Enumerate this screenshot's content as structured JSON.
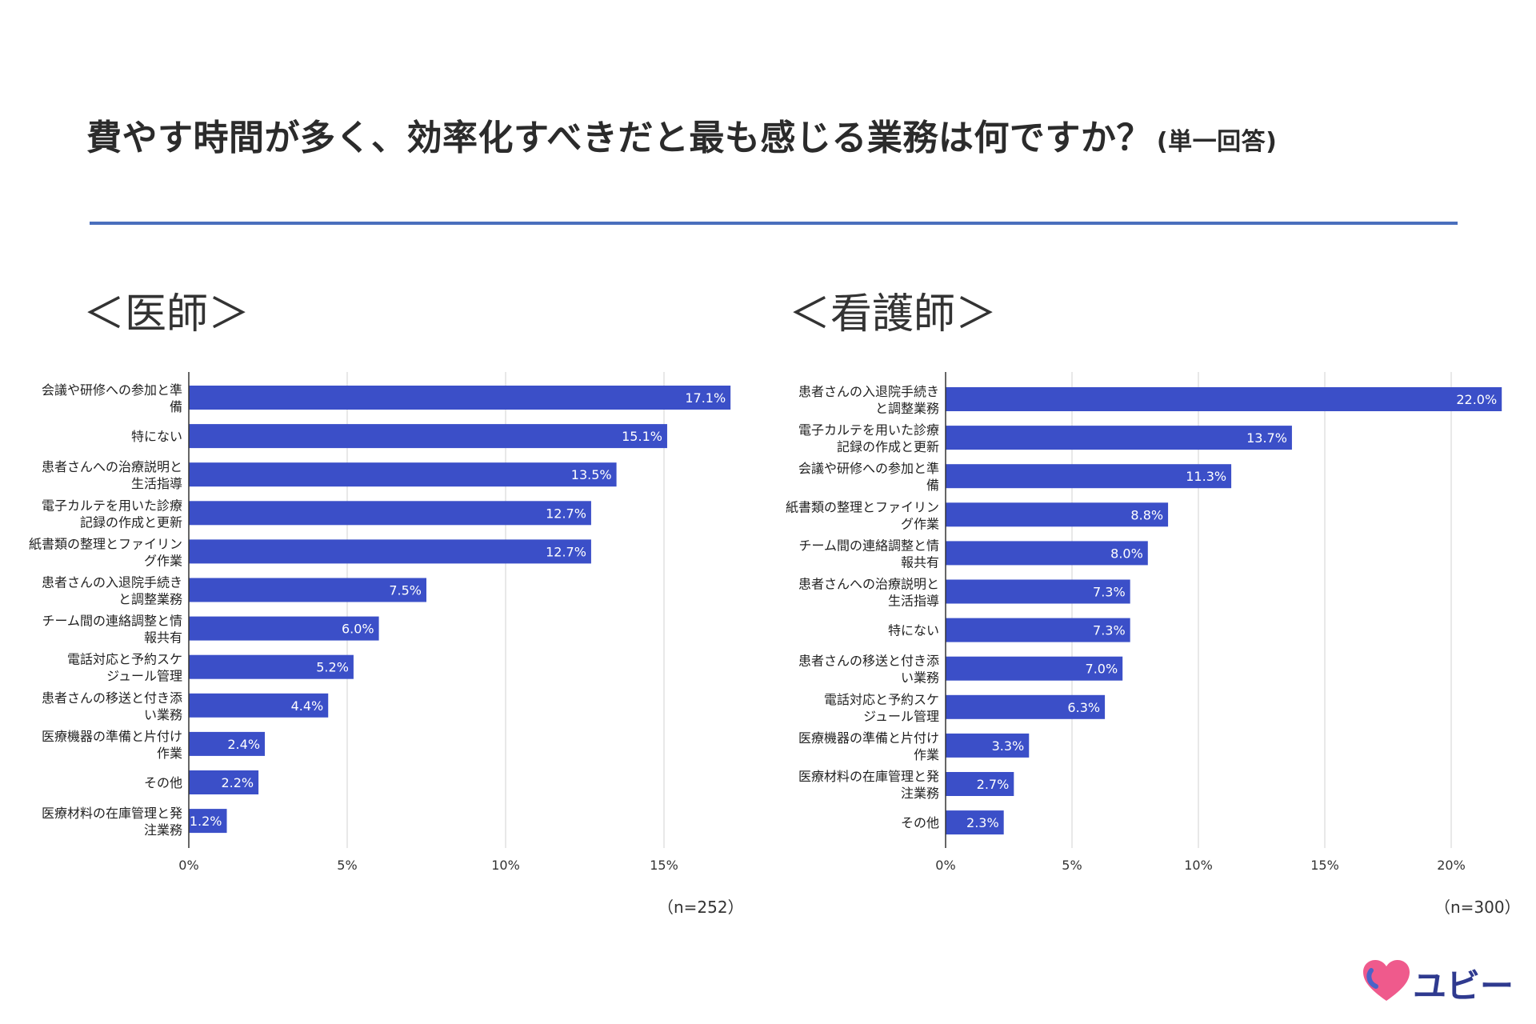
{
  "title": {
    "main": "費やす時間が多く、効率化すべきだと最も感じる業務は何ですか？",
    "sub": "(単一回答)"
  },
  "brand": {
    "logo_text": "ユビー",
    "accent": "#4a6fbd",
    "bar_color": "#3b4fc8",
    "heart_color": "#ef5a8c"
  },
  "chart_data": [
    {
      "type": "bar",
      "orientation": "horizontal",
      "title": "＜医師＞",
      "n_label": "（n=252）",
      "xlim": [
        0,
        17.1
      ],
      "xticks": [
        0,
        5,
        10,
        15
      ],
      "tick_labels": [
        "0%",
        "5%",
        "10%",
        "15%"
      ],
      "grid": true,
      "categories": [
        [
          "会議や研修への参加と準",
          "備"
        ],
        [
          "特にない"
        ],
        [
          "患者さんへの治療説明と",
          "生活指導"
        ],
        [
          "電子カルテを用いた診療",
          "記録の作成と更新"
        ],
        [
          "紙書類の整理とファイリン",
          "グ作業"
        ],
        [
          "患者さんの入退院手続き",
          "と調整業務"
        ],
        [
          "チーム間の連絡調整と情",
          "報共有"
        ],
        [
          "電話対応と予約スケ",
          "ジュール管理"
        ],
        [
          "患者さんの移送と付き添",
          "い業務"
        ],
        [
          "医療機器の準備と片付け",
          "作業"
        ],
        [
          "その他"
        ],
        [
          "医療材料の在庫管理と発",
          "注業務"
        ]
      ],
      "values": [
        17.1,
        15.1,
        13.5,
        12.7,
        12.7,
        7.5,
        6.0,
        5.2,
        4.4,
        2.4,
        2.2,
        1.2
      ],
      "value_labels": [
        "17.1%",
        "15.1%",
        "13.5%",
        "12.7%",
        "12.7%",
        "7.5%",
        "6.0%",
        "5.2%",
        "4.4%",
        "2.4%",
        "2.2%",
        "1.2%"
      ]
    },
    {
      "type": "bar",
      "orientation": "horizontal",
      "title": "＜看護師＞",
      "n_label": "（n=300）",
      "xlim": [
        0,
        22.0
      ],
      "xticks": [
        0,
        5,
        10,
        15,
        20
      ],
      "tick_labels": [
        "0%",
        "5%",
        "10%",
        "15%",
        "20%"
      ],
      "grid": true,
      "categories": [
        [
          "患者さんの入退院手続き",
          "と調整業務"
        ],
        [
          "電子カルテを用いた診療",
          "記録の作成と更新"
        ],
        [
          "会議や研修への参加と準",
          "備"
        ],
        [
          "紙書類の整理とファイリン",
          "グ作業"
        ],
        [
          "チーム間の連絡調整と情",
          "報共有"
        ],
        [
          "患者さんへの治療説明と",
          "生活指導"
        ],
        [
          "特にない"
        ],
        [
          "患者さんの移送と付き添",
          "い業務"
        ],
        [
          "電話対応と予約スケ",
          "ジュール管理"
        ],
        [
          "医療機器の準備と片付け",
          "作業"
        ],
        [
          "医療材料の在庫管理と発",
          "注業務"
        ],
        [
          "その他"
        ]
      ],
      "values": [
        22.0,
        13.7,
        11.3,
        8.8,
        8.0,
        7.3,
        7.3,
        7.0,
        6.3,
        3.3,
        2.7,
        2.3
      ],
      "value_labels": [
        "22.0%",
        "13.7%",
        "11.3%",
        "8.8%",
        "8.0%",
        "7.3%",
        "7.3%",
        "7.0%",
        "6.3%",
        "3.3%",
        "2.7%",
        "2.3%"
      ]
    }
  ]
}
